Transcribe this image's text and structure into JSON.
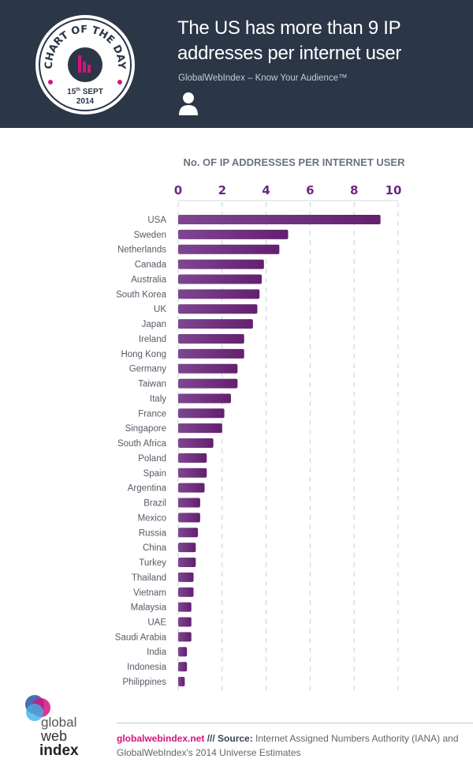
{
  "header": {
    "badge_text": "CHART OF THE DAY",
    "badge_date_day": "15",
    "badge_date_suffix": "th",
    "badge_date_month": "SEPT",
    "badge_date_year": "2014",
    "title_line1": "The US has more than 9 IP",
    "title_line2": "addresses per internet user",
    "subtitle": "GlobalWebIndex – Know Your Audience™",
    "icon": "user-icon"
  },
  "colors": {
    "header_bg": "#2b3647",
    "bar": "#6a2a7e",
    "accent": "#d4147c",
    "tick": "#6a2a7e"
  },
  "chart_data": {
    "type": "bar",
    "orientation": "horizontal",
    "title": "No. OF IP ADDRESSES PER INTERNET USER",
    "xlim": [
      0,
      10
    ],
    "ticks": [
      "0",
      "2",
      "4",
      "6",
      "8",
      "10"
    ],
    "tick_values": [
      0,
      2,
      4,
      6,
      8,
      10
    ],
    "grid": true,
    "categories": [
      "USA",
      "Sweden",
      "Netherlands",
      "Canada",
      "Australia",
      "South Korea",
      "UK",
      "Japan",
      "Ireland",
      "Hong Kong",
      "Germany",
      "Taiwan",
      "Italy",
      "France",
      "Singapore",
      "South Africa",
      "Poland",
      "Spain",
      "Argentina",
      "Brazil",
      "Mexico",
      "Russia",
      "China",
      "Turkey",
      "Thailand",
      "Vietnam",
      "Malaysia",
      "UAE",
      "Saudi Arabia",
      "India",
      "Indonesia",
      "Philippines"
    ],
    "values": [
      9.2,
      5.0,
      4.6,
      3.9,
      3.8,
      3.7,
      3.6,
      3.4,
      3.0,
      3.0,
      2.7,
      2.7,
      2.4,
      2.1,
      2.0,
      1.6,
      1.3,
      1.3,
      1.2,
      1.0,
      1.0,
      0.9,
      0.8,
      0.8,
      0.7,
      0.7,
      0.6,
      0.6,
      0.6,
      0.4,
      0.4,
      0.3
    ]
  },
  "footer": {
    "logo_text": [
      "global",
      "web",
      "index"
    ],
    "site": "globalwebindex.net",
    "separator": " /// ",
    "source_label": "Source:",
    "source_text": " Internet Assigned Numbers Authority (IANA) and GlobalWebIndex's 2014 Universe Estimates"
  }
}
